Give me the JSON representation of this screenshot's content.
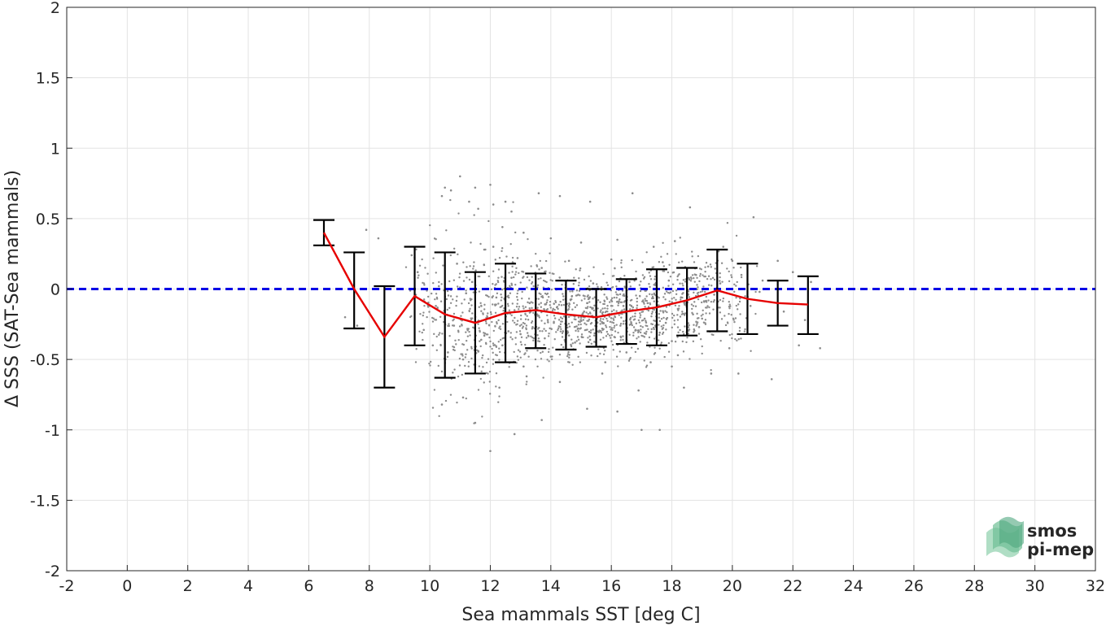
{
  "chart_data": {
    "type": "scatter",
    "xlabel": "Sea mammals SST [deg C]",
    "ylabel": "Δ SSS (SAT-Sea mammals)",
    "xlim": [
      -2,
      32
    ],
    "ylim": [
      -2,
      2
    ],
    "xticks": [
      "-2",
      "0",
      "2",
      "4",
      "6",
      "8",
      "10",
      "12",
      "14",
      "16",
      "18",
      "20",
      "22",
      "24",
      "26",
      "28",
      "30",
      "32"
    ],
    "yticks": [
      "2",
      "1.5",
      "1",
      "0.5",
      "0",
      "-0.5",
      "-1",
      "-1.5",
      "-2"
    ],
    "grid": true,
    "reference_line": {
      "y": 0,
      "color": "#0000e6",
      "style": "dashed"
    },
    "scatter_color": "#8c8c8c",
    "mean_line_color": "#e60000",
    "errorbar_color": "#000000",
    "bins": [
      {
        "x": 6.5,
        "mean": 0.4,
        "upper": 0.49,
        "lower": 0.31
      },
      {
        "x": 7.5,
        "mean": 0.0,
        "upper": 0.26,
        "lower": -0.28
      },
      {
        "x": 8.5,
        "mean": -0.34,
        "upper": 0.02,
        "lower": -0.7
      },
      {
        "x": 9.5,
        "mean": -0.05,
        "upper": 0.3,
        "lower": -0.4
      },
      {
        "x": 10.5,
        "mean": -0.18,
        "upper": 0.26,
        "lower": -0.63
      },
      {
        "x": 11.5,
        "mean": -0.24,
        "upper": 0.12,
        "lower": -0.6
      },
      {
        "x": 12.5,
        "mean": -0.17,
        "upper": 0.18,
        "lower": -0.52
      },
      {
        "x": 13.5,
        "mean": -0.15,
        "upper": 0.11,
        "lower": -0.42
      },
      {
        "x": 14.5,
        "mean": -0.18,
        "upper": 0.06,
        "lower": -0.43
      },
      {
        "x": 15.5,
        "mean": -0.2,
        "upper": 0.0,
        "lower": -0.41
      },
      {
        "x": 16.5,
        "mean": -0.16,
        "upper": 0.07,
        "lower": -0.39
      },
      {
        "x": 17.5,
        "mean": -0.13,
        "upper": 0.14,
        "lower": -0.4
      },
      {
        "x": 18.5,
        "mean": -0.08,
        "upper": 0.15,
        "lower": -0.33
      },
      {
        "x": 19.5,
        "mean": -0.01,
        "upper": 0.28,
        "lower": -0.3
      },
      {
        "x": 20.5,
        "mean": -0.07,
        "upper": 0.18,
        "lower": -0.32
      },
      {
        "x": 21.5,
        "mean": -0.1,
        "upper": 0.06,
        "lower": -0.26
      },
      {
        "x": 22.5,
        "mean": -0.11,
        "upper": 0.09,
        "lower": -0.32
      }
    ],
    "scatter_points": [
      [
        10.5,
        0.72
      ],
      [
        10.7,
        0.7
      ],
      [
        10.4,
        0.66
      ],
      [
        11.0,
        0.8
      ],
      [
        11.5,
        0.72
      ],
      [
        11.3,
        0.62
      ],
      [
        11.6,
        0.57
      ],
      [
        12.1,
        0.6
      ],
      [
        12.5,
        0.62
      ],
      [
        12.7,
        0.55
      ],
      [
        13.6,
        0.68
      ],
      [
        14.3,
        0.66
      ],
      [
        15.3,
        0.62
      ],
      [
        16.7,
        0.68
      ],
      [
        18.6,
        0.58
      ],
      [
        20.7,
        0.51
      ],
      [
        12.0,
        0.74
      ],
      [
        12.4,
        0.44
      ],
      [
        13.1,
        0.4
      ],
      [
        14.0,
        0.36
      ],
      [
        15.0,
        0.33
      ],
      [
        16.2,
        0.35
      ],
      [
        17.4,
        0.3
      ],
      [
        18.1,
        0.34
      ],
      [
        19.7,
        0.3
      ],
      [
        11.8,
        0.28
      ],
      [
        10.9,
        0.18
      ],
      [
        12.9,
        0.22
      ],
      [
        14.6,
        0.2
      ],
      [
        16.0,
        0.21
      ],
      [
        17.7,
        0.19
      ],
      [
        19.2,
        0.16
      ],
      [
        20.3,
        0.1
      ],
      [
        21.0,
        0.06
      ],
      [
        22.0,
        0.12
      ],
      [
        22.6,
        0.05
      ],
      [
        10.3,
        0.02
      ],
      [
        11.2,
        -0.03
      ],
      [
        12.2,
        -0.06
      ],
      [
        13.3,
        -0.1
      ],
      [
        14.2,
        -0.13
      ],
      [
        15.1,
        -0.16
      ],
      [
        16.4,
        -0.12
      ],
      [
        17.2,
        -0.1
      ],
      [
        18.3,
        -0.06
      ],
      [
        19.4,
        -0.04
      ],
      [
        20.6,
        -0.12
      ],
      [
        21.7,
        -0.16
      ],
      [
        22.4,
        -0.22
      ],
      [
        7.2,
        -0.2
      ],
      [
        7.6,
        -0.26
      ],
      [
        7.9,
        0.42
      ],
      [
        8.3,
        0.36
      ],
      [
        9.4,
        0.24
      ],
      [
        10.1,
        -0.4
      ],
      [
        10.6,
        -0.45
      ],
      [
        11.1,
        -0.5
      ],
      [
        11.7,
        -0.36
      ],
      [
        12.6,
        -0.3
      ],
      [
        13.0,
        -0.32
      ],
      [
        13.8,
        -0.35
      ],
      [
        14.4,
        -0.3
      ],
      [
        14.9,
        -0.28
      ],
      [
        15.6,
        -0.3
      ],
      [
        16.1,
        -0.34
      ],
      [
        16.8,
        -0.29
      ],
      [
        17.6,
        -0.31
      ],
      [
        18.0,
        -0.37
      ],
      [
        18.9,
        -0.27
      ],
      [
        19.9,
        -0.42
      ],
      [
        20.2,
        -0.6
      ],
      [
        21.3,
        -0.64
      ],
      [
        22.2,
        -0.4
      ],
      [
        22.9,
        -0.42
      ],
      [
        10.4,
        -0.82
      ],
      [
        11.1,
        -0.77
      ],
      [
        11.5,
        -0.95
      ],
      [
        12.0,
        -1.15
      ],
      [
        12.8,
        -1.03
      ],
      [
        13.7,
        -0.93
      ],
      [
        15.2,
        -0.85
      ],
      [
        16.2,
        -0.87
      ],
      [
        17.0,
        -1.0
      ],
      [
        17.6,
        -1.0
      ],
      [
        18.4,
        -0.7
      ],
      [
        19.3,
        -0.6
      ],
      [
        13.2,
        -0.62
      ],
      [
        14.3,
        -0.66
      ],
      [
        15.7,
        -0.6
      ],
      [
        16.9,
        -0.72
      ],
      [
        18.0,
        -0.55
      ],
      [
        12.3,
        -0.7
      ],
      [
        13.9,
        -0.22
      ],
      [
        14.7,
        -0.05
      ],
      [
        15.4,
        0.04
      ],
      [
        16.6,
        0.05
      ],
      [
        17.9,
        0.06
      ],
      [
        18.7,
        -0.18
      ],
      [
        19.0,
        -0.21
      ],
      [
        14.1,
        -0.24
      ],
      [
        14.5,
        -0.2
      ],
      [
        15.0,
        -0.22
      ],
      [
        15.5,
        -0.24
      ],
      [
        15.9,
        -0.18
      ],
      [
        16.3,
        -0.26
      ],
      [
        13.6,
        -0.19
      ],
      [
        13.4,
        -0.27
      ],
      [
        12.8,
        -0.15
      ],
      [
        17.1,
        -0.21
      ],
      [
        17.8,
        -0.24
      ],
      [
        11.9,
        -0.2
      ],
      [
        12.4,
        -0.4
      ],
      [
        10.8,
        -0.26
      ],
      [
        9.8,
        -0.29
      ],
      [
        9.6,
        0.12
      ],
      [
        11.4,
        0.05
      ],
      [
        12.7,
        0.08
      ],
      [
        13.5,
        0.02
      ],
      [
        14.8,
        -0.38
      ],
      [
        16.5,
        -0.45
      ],
      [
        17.3,
        -0.52
      ],
      [
        18.2,
        -0.47
      ],
      [
        15.8,
        -0.52
      ],
      [
        14.0,
        -0.48
      ],
      [
        13.1,
        -0.55
      ],
      [
        11.6,
        -0.44
      ],
      [
        10.2,
        -0.12
      ],
      [
        20.0,
        0.2
      ],
      [
        21.5,
        0.2
      ],
      [
        19.6,
        0.04
      ],
      [
        15.2,
        -0.1
      ],
      [
        16.7,
        -0.15
      ],
      [
        17.5,
        -0.02
      ],
      [
        14.6,
        -0.33
      ],
      [
        15.3,
        -0.36
      ],
      [
        16.0,
        -0.08
      ],
      [
        12.1,
        0.3
      ],
      [
        13.7,
        0.15
      ],
      [
        18.8,
        0.1
      ],
      [
        20.9,
        -0.02
      ]
    ]
  },
  "logo": {
    "line1": "smos",
    "line2": "pi-mep",
    "color": "#6fbf96"
  }
}
